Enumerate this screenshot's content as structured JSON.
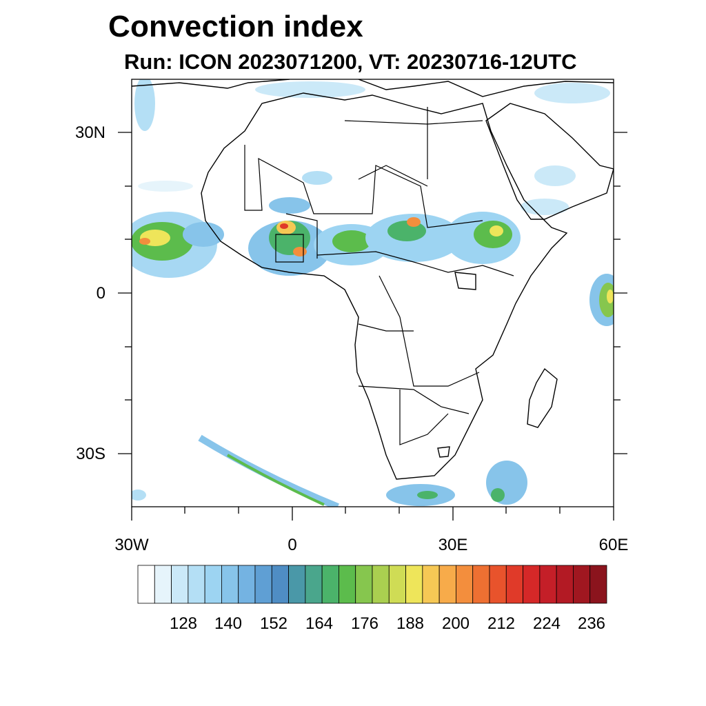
{
  "title": "Convection index",
  "subtitle": "Run: ICON 2023071200,  VT: 20230716-12UTC",
  "axes": {
    "lon_ticks": [
      "30W",
      "0",
      "30E",
      "60E"
    ],
    "lat_ticks": [
      "30N",
      "0",
      "30S"
    ]
  },
  "colorbar": {
    "labels": [
      "128",
      "140",
      "152",
      "164",
      "176",
      "188",
      "200",
      "212",
      "224",
      "236"
    ],
    "colors": [
      "#ffffff",
      "#e6f4fb",
      "#cbe9f8",
      "#b4dff5",
      "#9dd4f2",
      "#87c4ea",
      "#74b3e2",
      "#5f9fd4",
      "#4f8dc4",
      "#4a98a8",
      "#4aa68c",
      "#4bb36a",
      "#5cbc4c",
      "#86c64e",
      "#aacf50",
      "#cfdc55",
      "#eee55a",
      "#f6c855",
      "#f7ab4a",
      "#f38e3d",
      "#ee7032",
      "#e8532c",
      "#e03a29",
      "#d52828",
      "#c41f28",
      "#b31a24",
      "#a01720",
      "#8b141d"
    ]
  },
  "map": {
    "extent": "30W–60E, 40S–40N",
    "field": "convection index"
  }
}
